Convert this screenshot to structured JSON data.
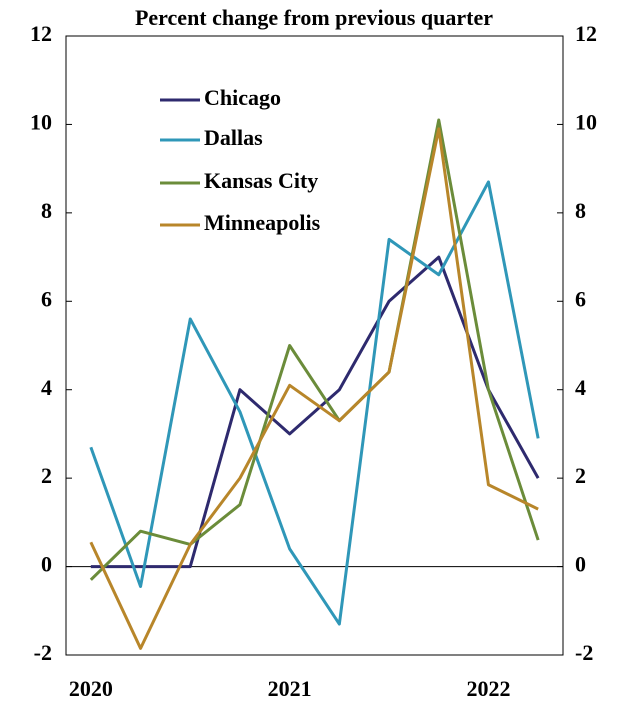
{
  "chart_data": {
    "type": "line",
    "title": "Percent change from previous quarter",
    "categories": [
      "2020",
      null,
      null,
      null,
      "2021",
      null,
      null,
      null,
      "2022",
      null
    ],
    "series": [
      {
        "name": "Chicago",
        "color": "#2e2a6e",
        "values": [
          0,
          0,
          0,
          4,
          3,
          4,
          6,
          7,
          4,
          2
        ]
      },
      {
        "name": "Dallas",
        "color": "#2f97b8",
        "values": [
          2.7,
          -0.45,
          5.6,
          3.5,
          0.4,
          -1.3,
          7.4,
          6.6,
          8.7,
          2.9
        ]
      },
      {
        "name": "Kansas City",
        "color": "#6b8c3a",
        "values": [
          -0.3,
          0.8,
          0.5,
          1.4,
          5.0,
          3.3,
          4.4,
          10.1,
          4.0,
          0.6
        ]
      },
      {
        "name": "Minneapolis",
        "color": "#b8862a",
        "values": [
          0.55,
          -1.85,
          0.5,
          2.0,
          4.1,
          3.3,
          4.4,
          9.9,
          1.85,
          1.3
        ]
      }
    ],
    "ylim": [
      -2,
      12
    ],
    "yticks": [
      -2,
      0,
      2,
      4,
      6,
      8,
      10,
      12
    ],
    "y2lim": [
      -2,
      12
    ],
    "y2ticks": [
      -2,
      0,
      2,
      4,
      6,
      8,
      10,
      12
    ],
    "legend": "upper left"
  }
}
